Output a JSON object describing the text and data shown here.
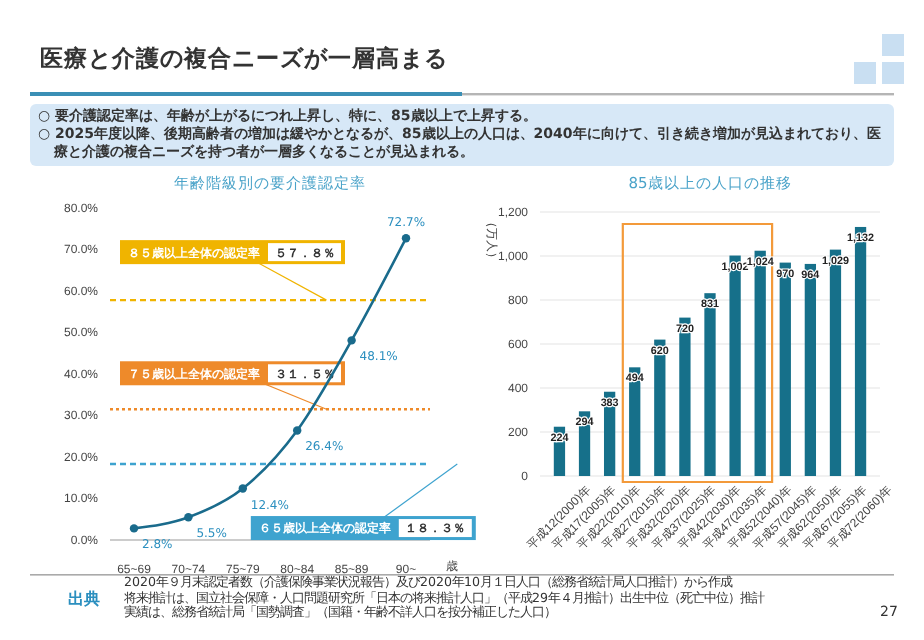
{
  "chart_data": [
    {
      "type": "other",
      "title": "医療と介護の複合ニーズが一層高まる",
      "annotations": [
        "○ 要介護認定率は、年齢が上がるにつれ上昇し、特に、85歳以上で上昇する。",
        "○ 2025年度以降、後期高齢者の増加は緩やかとなるが、85歳以上の人口は、2040年に向けて、引き続き増加が見込まれており、医療と介護の複合ニーズを持つ者が一層多くなることが見込まれる。",
        "出典",
        "2020年９月末認定者数（介護保険事業状況報告）及び2020年10月１日人口（総務省統計局人口推計）から作成",
        "将来推計は、国立社会保障・人口問題研究所「日本の将来推計人口」（平成29年４月推計）出生中位（死亡中位）推計",
        "実績は、総務省統計局「国勢調査」（国籍・年齢不詳人口を按分補正した人口）",
        "27"
      ]
    },
    {
      "type": "line",
      "title": "年齢階級別の要介護認定率",
      "xlabel": "歳",
      "categories": [
        "65~69",
        "70~74",
        "75~79",
        "80~84",
        "85~89",
        "90~"
      ],
      "color": "#1a6b8c",
      "marker": "circle",
      "values": [
        2.8,
        5.5,
        12.4,
        26.4,
        48.1,
        72.7
      ],
      "value_labels": [
        "2.8%",
        "5.5%",
        "12.4%",
        "26.4%",
        "48.1%",
        "72.7%"
      ],
      "ylim": [
        0,
        80
      ],
      "yticks": [
        {
          "value": 0,
          "label": "0.0%"
        },
        {
          "value": 10,
          "label": "10.0%"
        },
        {
          "value": 20,
          "label": "20.0%"
        },
        {
          "value": 30,
          "label": "30.0%"
        },
        {
          "value": 40,
          "label": "40.0%"
        },
        {
          "value": 50,
          "label": "50.0%"
        },
        {
          "value": 60,
          "label": "60.0%"
        },
        {
          "value": 70,
          "label": "70.0%"
        },
        {
          "value": 80,
          "label": "80.0%"
        }
      ],
      "ref_lines": [
        {
          "axis": "y",
          "value": 57.8,
          "label": "８５歳以上全体の認定率　５７．８％",
          "color": "#f0b400",
          "line_style": "dashed"
        },
        {
          "axis": "y",
          "value": 31.5,
          "label": "７５歳以上全体の認定率　３１．５％",
          "color": "#ee8a2a",
          "line_style": "dotted"
        },
        {
          "axis": "y",
          "value": 18.3,
          "label": "６５歳以上全体の認定率　１８．３％",
          "color": "#3ea3cf",
          "line_style": "dashed"
        }
      ]
    },
    {
      "type": "bar",
      "title": "85歳以上の人口の推移",
      "ylabel": "（万人）",
      "color": "#16708a",
      "grid": "y",
      "categories": [
        "平成12(2000)年",
        "平成17(2005)年",
        "平成22(2010)年",
        "平成27(2015)年",
        "平成32(2020)年",
        "平成37(2025)年",
        "平成42(2030)年",
        "平成47(2035)年",
        "平成52(2040)年",
        "平成57(2045)年",
        "平成62(2050)年",
        "平成67(2055)年",
        "平成72(2060)年"
      ],
      "values": [
        224,
        294,
        383,
        494,
        620,
        720,
        831,
        1002,
        1024,
        970,
        964,
        1029,
        1132
      ],
      "value_labels": [
        "224",
        "294",
        "383",
        "494",
        "620",
        "720",
        "831",
        "1,002",
        "1,024",
        "970",
        "964",
        "1,029",
        "1,132"
      ],
      "ylim": [
        0,
        1200
      ],
      "yticks": [
        0,
        200,
        400,
        600,
        800,
        {
          "value": 1000,
          "label": "1,000"
        },
        {
          "value": 1200,
          "label": "1,200"
        }
      ]
    }
  ]
}
